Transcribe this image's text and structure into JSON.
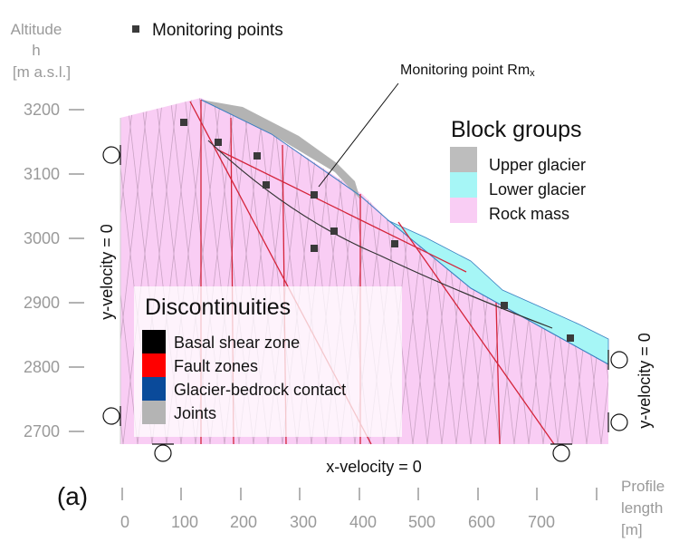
{
  "panel_label": "(a)",
  "y_axis": {
    "title_lines": [
      "Altitude",
      "h",
      "[m a.s.l.]"
    ],
    "ticks": [
      "3200",
      "3100",
      "3000",
      "2900",
      "2800",
      "2700"
    ]
  },
  "x_axis": {
    "title_lines": [
      "Profile",
      "length",
      "[m]"
    ],
    "ticks": [
      "0",
      "100",
      "200",
      "300",
      "400",
      "500",
      "600",
      "700"
    ]
  },
  "legend_monitoring": "Monitoring points",
  "callout": {
    "text": "Monitoring point Rm",
    "subscript": "x"
  },
  "block_groups": {
    "title": "Block groups",
    "items": [
      {
        "label": "Upper glacier",
        "color": "#bdbdbd"
      },
      {
        "label": "Lower glacier",
        "color": "#a6f6f6"
      },
      {
        "label": "Rock mass",
        "color": "#f9cdf4"
      }
    ]
  },
  "discontinuities": {
    "title": "Discontinuities",
    "items": [
      {
        "label": "Basal shear zone",
        "color": "#000000"
      },
      {
        "label": "Fault zones",
        "color": "#ff0000"
      },
      {
        "label": "Glacier-bedrock contact",
        "color": "#0a4a9a"
      },
      {
        "label": "Joints",
        "color": "#b4b4b4"
      }
    ]
  },
  "boundary_conditions": {
    "left": "y-velocity = 0",
    "right": "y-velocity = 0",
    "bottom": "x-velocity = 0"
  }
}
